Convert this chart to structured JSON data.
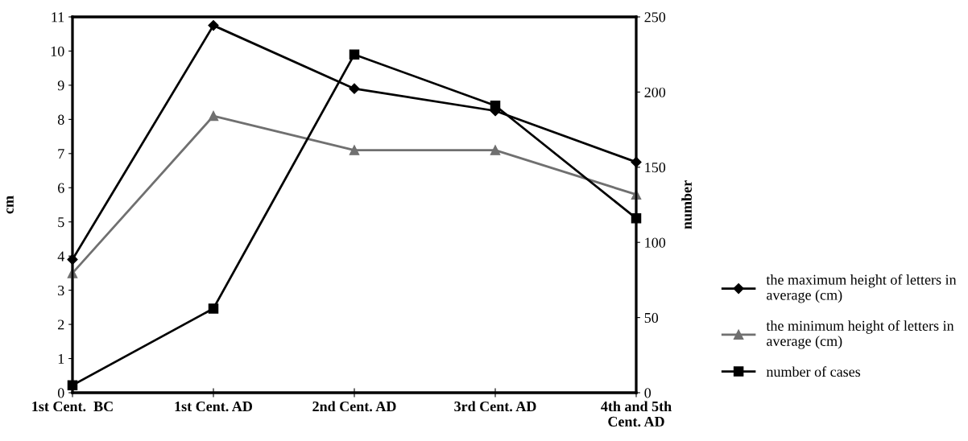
{
  "chart_data": {
    "type": "line",
    "ylabel": "cm",
    "y2label": "number",
    "categories": [
      "1st Cent.  BC",
      "1st Cent. AD",
      "2nd Cent. AD",
      "3rd Cent. AD",
      "4th and 5th\nCent. AD"
    ],
    "series": [
      {
        "name": "the maximum height of letters in\naverage (cm)",
        "color": "#000000",
        "marker": "diamond",
        "values": [
          3.9,
          10.75,
          8.9,
          8.25,
          6.75
        ]
      },
      {
        "name": "the minimum height of letters in\naverage (cm)",
        "color": "#707070",
        "marker": "triangle",
        "values": [
          3.5,
          8.1,
          7.1,
          7.1,
          5.8
        ]
      },
      {
        "name": "number of cases",
        "color": "#000000",
        "marker": "square",
        "axis": "y2",
        "values": [
          5,
          56,
          225,
          191,
          116
        ]
      }
    ],
    "ylim": [
      0,
      11
    ],
    "yticks": [
      0,
      1,
      2,
      3,
      4,
      5,
      6,
      7,
      8,
      9,
      10,
      11
    ],
    "y2lim": [
      0,
      250
    ],
    "y2ticks": [
      0,
      50,
      100,
      150,
      200,
      250
    ],
    "grid": false,
    "legend": "bottom right",
    "line_style": "solid"
  }
}
